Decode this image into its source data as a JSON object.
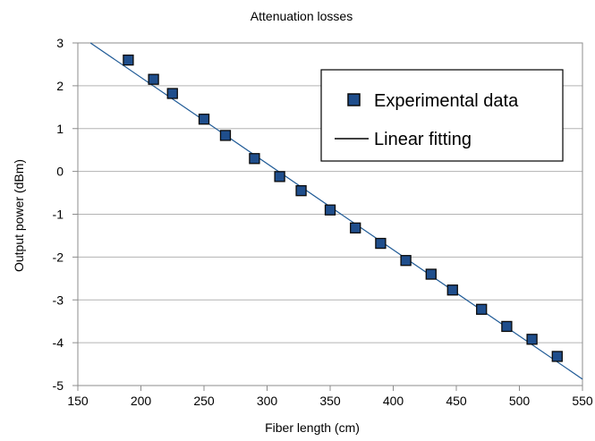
{
  "chart_data": {
    "type": "scatter",
    "title": "Attenuation losses",
    "xlabel": "Fiber length (cm)",
    "ylabel": "Output power (dBm)",
    "xlim": [
      150,
      550
    ],
    "ylim": [
      -5,
      3
    ],
    "xticks": [
      150,
      200,
      250,
      300,
      350,
      400,
      450,
      500,
      550
    ],
    "yticks": [
      -5,
      -4,
      -3,
      -2,
      -1,
      0,
      1,
      2,
      3
    ],
    "grid": "horizontal",
    "legend_position": "top-right",
    "series": [
      {
        "name": "Experimental data",
        "kind": "scatter",
        "marker": "square",
        "color": "#1f4e8c",
        "x": [
          190,
          210,
          225,
          250,
          267,
          290,
          310,
          327,
          350,
          370,
          390,
          410,
          430,
          447,
          470,
          490,
          510,
          530
        ],
        "y": [
          2.6,
          2.15,
          1.82,
          1.22,
          0.84,
          0.3,
          -0.12,
          -0.45,
          -0.9,
          -1.32,
          -1.68,
          -2.08,
          -2.4,
          -2.77,
          -3.22,
          -3.62,
          -3.92,
          -4.32
        ]
      },
      {
        "name": "Linear fitting",
        "kind": "line",
        "color": "#1f5a96",
        "x": [
          160,
          550
        ],
        "y": [
          3.0,
          -4.85
        ]
      }
    ]
  }
}
